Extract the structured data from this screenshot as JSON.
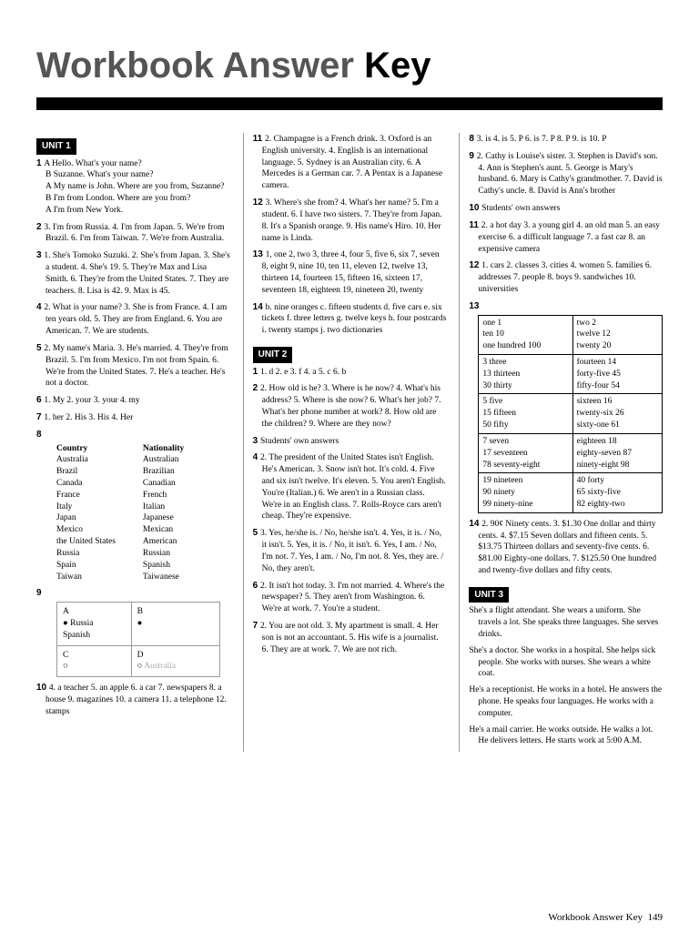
{
  "title_main": "Workbook Answer ",
  "title_key": "Key",
  "footer_label": "Workbook Answer Key",
  "footer_page": "149",
  "unit1": "UNIT 1",
  "unit2": "UNIT 2",
  "unit3": "UNIT 3",
  "c1": {
    "q1": "A Hello. What's your name?\nB Suzanne. What's your name?\nA My name is John. Where are you from, Suzanne?\nB I'm from London. Where are you from?\nA I'm from New York.",
    "q2": "3. I'm from Russia.  4. I'm from Japan.  5. We're from Brazil.  6. I'm from Taiwan.  7. We're from Australia.",
    "q3": "1. She's Tomoko Suzuki.  2. She's from Japan.  3. She's a student.  4. She's 19.  5. They're Max and Lisa Smith.  6. They're from the United States.  7. They are teachers.  8. Lisa is 42.  9. Max is 45.",
    "q4": "2. What is your name?  3. She is from France.  4. I am ten years old.  5. They are from England.  6. You are American.  7. We are students.",
    "q5": "2. My name's Maria.  3. He's married.  4. They're from Brazil.  5. I'm from Mexico. I'm not from Spain.  6. We're from the United States.  7. He's a teacher. He's not a doctor.",
    "q6": "1. My  2. your  3. your  4. my",
    "q7": "1. her  2. His  3. His  4. Her",
    "q8h1": "Country",
    "q8h2": "Nationality",
    "nat": [
      [
        "Australia",
        "Australian"
      ],
      [
        "Brazil",
        "Brazilian"
      ],
      [
        "Canada",
        "Canadian"
      ],
      [
        "France",
        "French"
      ],
      [
        "Italy",
        "Italian"
      ],
      [
        "Japan",
        "Japanese"
      ],
      [
        "Mexico",
        "Mexican"
      ],
      [
        "the United States",
        "American"
      ],
      [
        "Russia",
        "Russian"
      ],
      [
        "Spain",
        "Spanish"
      ],
      [
        "Taiwan",
        "Taiwanese"
      ]
    ],
    "q9a": "A",
    "q9b": "B",
    "q9c": "C",
    "q9d": "D",
    "q9_russia": "Russia",
    "q9_spanish": "Spanish",
    "q9_australia": "Australia",
    "q10": "4. a teacher  5. an apple  6. a car  7. newspapers  8. a house  9. magazines  10. a camera  11. a telephone  12. stamps"
  },
  "c2": {
    "q11": "2. Champagne is a French drink.  3. Oxford is an English university.  4. English is an international language.  5. Sydney is an Australian city.  6. A Mercedes is a German car.  7. A Pentax is a Japanese camera.",
    "q12": "3. Where's she from?  4. What's her name?  5. I'm a student.  6. I have two sisters.  7. They're from Japan.  8. It's a Spanish orange.  9. His name's Hiro.  10. Her name is Linda.",
    "q13": "1, one  2, two  3, three  4, four  5, five  6, six  7, seven  8, eight  9, nine  10, ten  11, eleven  12, twelve  13, thirteen  14, fourteen  15, fifteen  16, sixteen  17, seventeen  18, eighteen  19, nineteen  20, twenty",
    "q14": "b. nine oranges  c. fifteen students  d. five cars  e. six tickets  f. three letters  g. twelve keys  h. four postcards  i. twenty stamps  j. two dictionaries",
    "u2q1": "1. d  2. e  3. f  4. a  5. c  6. b",
    "u2q2": "2. How old is he?  3. Where is he now?  4. What's his address?  5. Where is she now?  6. What's her job?  7. What's her phone number at work?  8. How old are the children?  9. Where are they now?",
    "u2q3": "Students' own answers",
    "u2q4": "2. The president of the United States isn't English. He's American.  3. Snow isn't hot. It's cold.  4. Five and six isn't twelve. It's eleven.  5. You aren't English. You're (Italian.)  6. We aren't in a Russian class. We're in an English class.  7. Rolls-Royce cars aren't cheap. They're expensive.",
    "u2q5": "3. Yes, he/she is. / No, he/she isn't.  4. Yes, it is. / No, it isn't.  5. Yes, it is. / No, it isn't.  6. Yes, I am. / No, I'm not.  7. Yes, I am. / No, I'm not.  8. Yes, they are. / No, they aren't.",
    "u2q6": "2. It isn't hot today.  3. I'm not married.  4. Where's the newspaper?  5. They aren't from Washington.  6. We're at work.  7. You're a student.",
    "u2q7": "2. You are not old.  3. My apartment is small.  4. Her son is not an accountant.  5. His wife is a journalist.  6. They are at work.  7. We are not rich."
  },
  "c3": {
    "u2q8": "3. is  4. is  5. P  6. is  7. P  8. P  9. is  10. P",
    "u2q9": "2. Cathy is Louise's sister.  3. Stephen is David's son.  4. Ann is Stephen's aunt.  5. George is Mary's husband.  6. Mary is Cathy's grandmother.  7. David is Cathy's uncle.  8. David is Ann's brother",
    "u2q10": "Students' own answers",
    "u2q11": "2. a hot day  3. a young girl  4. an old man  5. an easy exercise  6. a difficult language  7. a fast car  8. an expensive camera",
    "u2q12": "1. cars  2. classes  3. cities  4. women  5. families  6. addresses  7. people  8. boys  9. sandwiches  10. universities",
    "u2q13": {
      "r1a": "one 1\nten 10\none hundred 100",
      "r1b": "two 2\ntwelve 12\ntwenty 20",
      "r2a": "3 three\n13 thirteen\n30 thirty",
      "r2b": "fourteen 14\nforty-five 45\nfifty-four 54",
      "r3a": "5 five\n15 fifteen\n50 fifty",
      "r3b": "sixteen 16\ntwenty-six 26\nsixty-one 61",
      "r4a": "7 seven\n17 seventeen\n78 seventy-eight",
      "r4b": "eighteen 18\neighty-seven 87\nninety-eight 98",
      "r5a": "19 nineteen\n90 ninety\n99 ninety-nine",
      "r5b": "40 forty\n65 sixty-five\n82 eighty-two"
    },
    "u2q14": "2. 90¢  Ninety cents.  3. $1.30  One dollar and thirty cents.  4. $7.15  Seven dollars and fifteen cents.  5. $13.75  Thirteen dollars and seventy-five cents.  6. $81.00  Eighty-one dollars.  7. $125.50  One hundred and twenty-five dollars and fifty cents.",
    "u3p1": "She's a flight attendant.  She wears a uniform. She travels a lot. She speaks three languages. She serves drinks.",
    "u3p2": "She's a doctor.  She works in a hospital. She helps sick people. She works with nurses. She wears a white coat.",
    "u3p3": "He's a receptionist.  He works in a hotel. He answers the phone. He speaks four languages. He works with a computer.",
    "u3p4": "He's a mail carrier.  He works outside. He walks a lot. He delivers letters. He starts work at 5:00 A.M."
  }
}
